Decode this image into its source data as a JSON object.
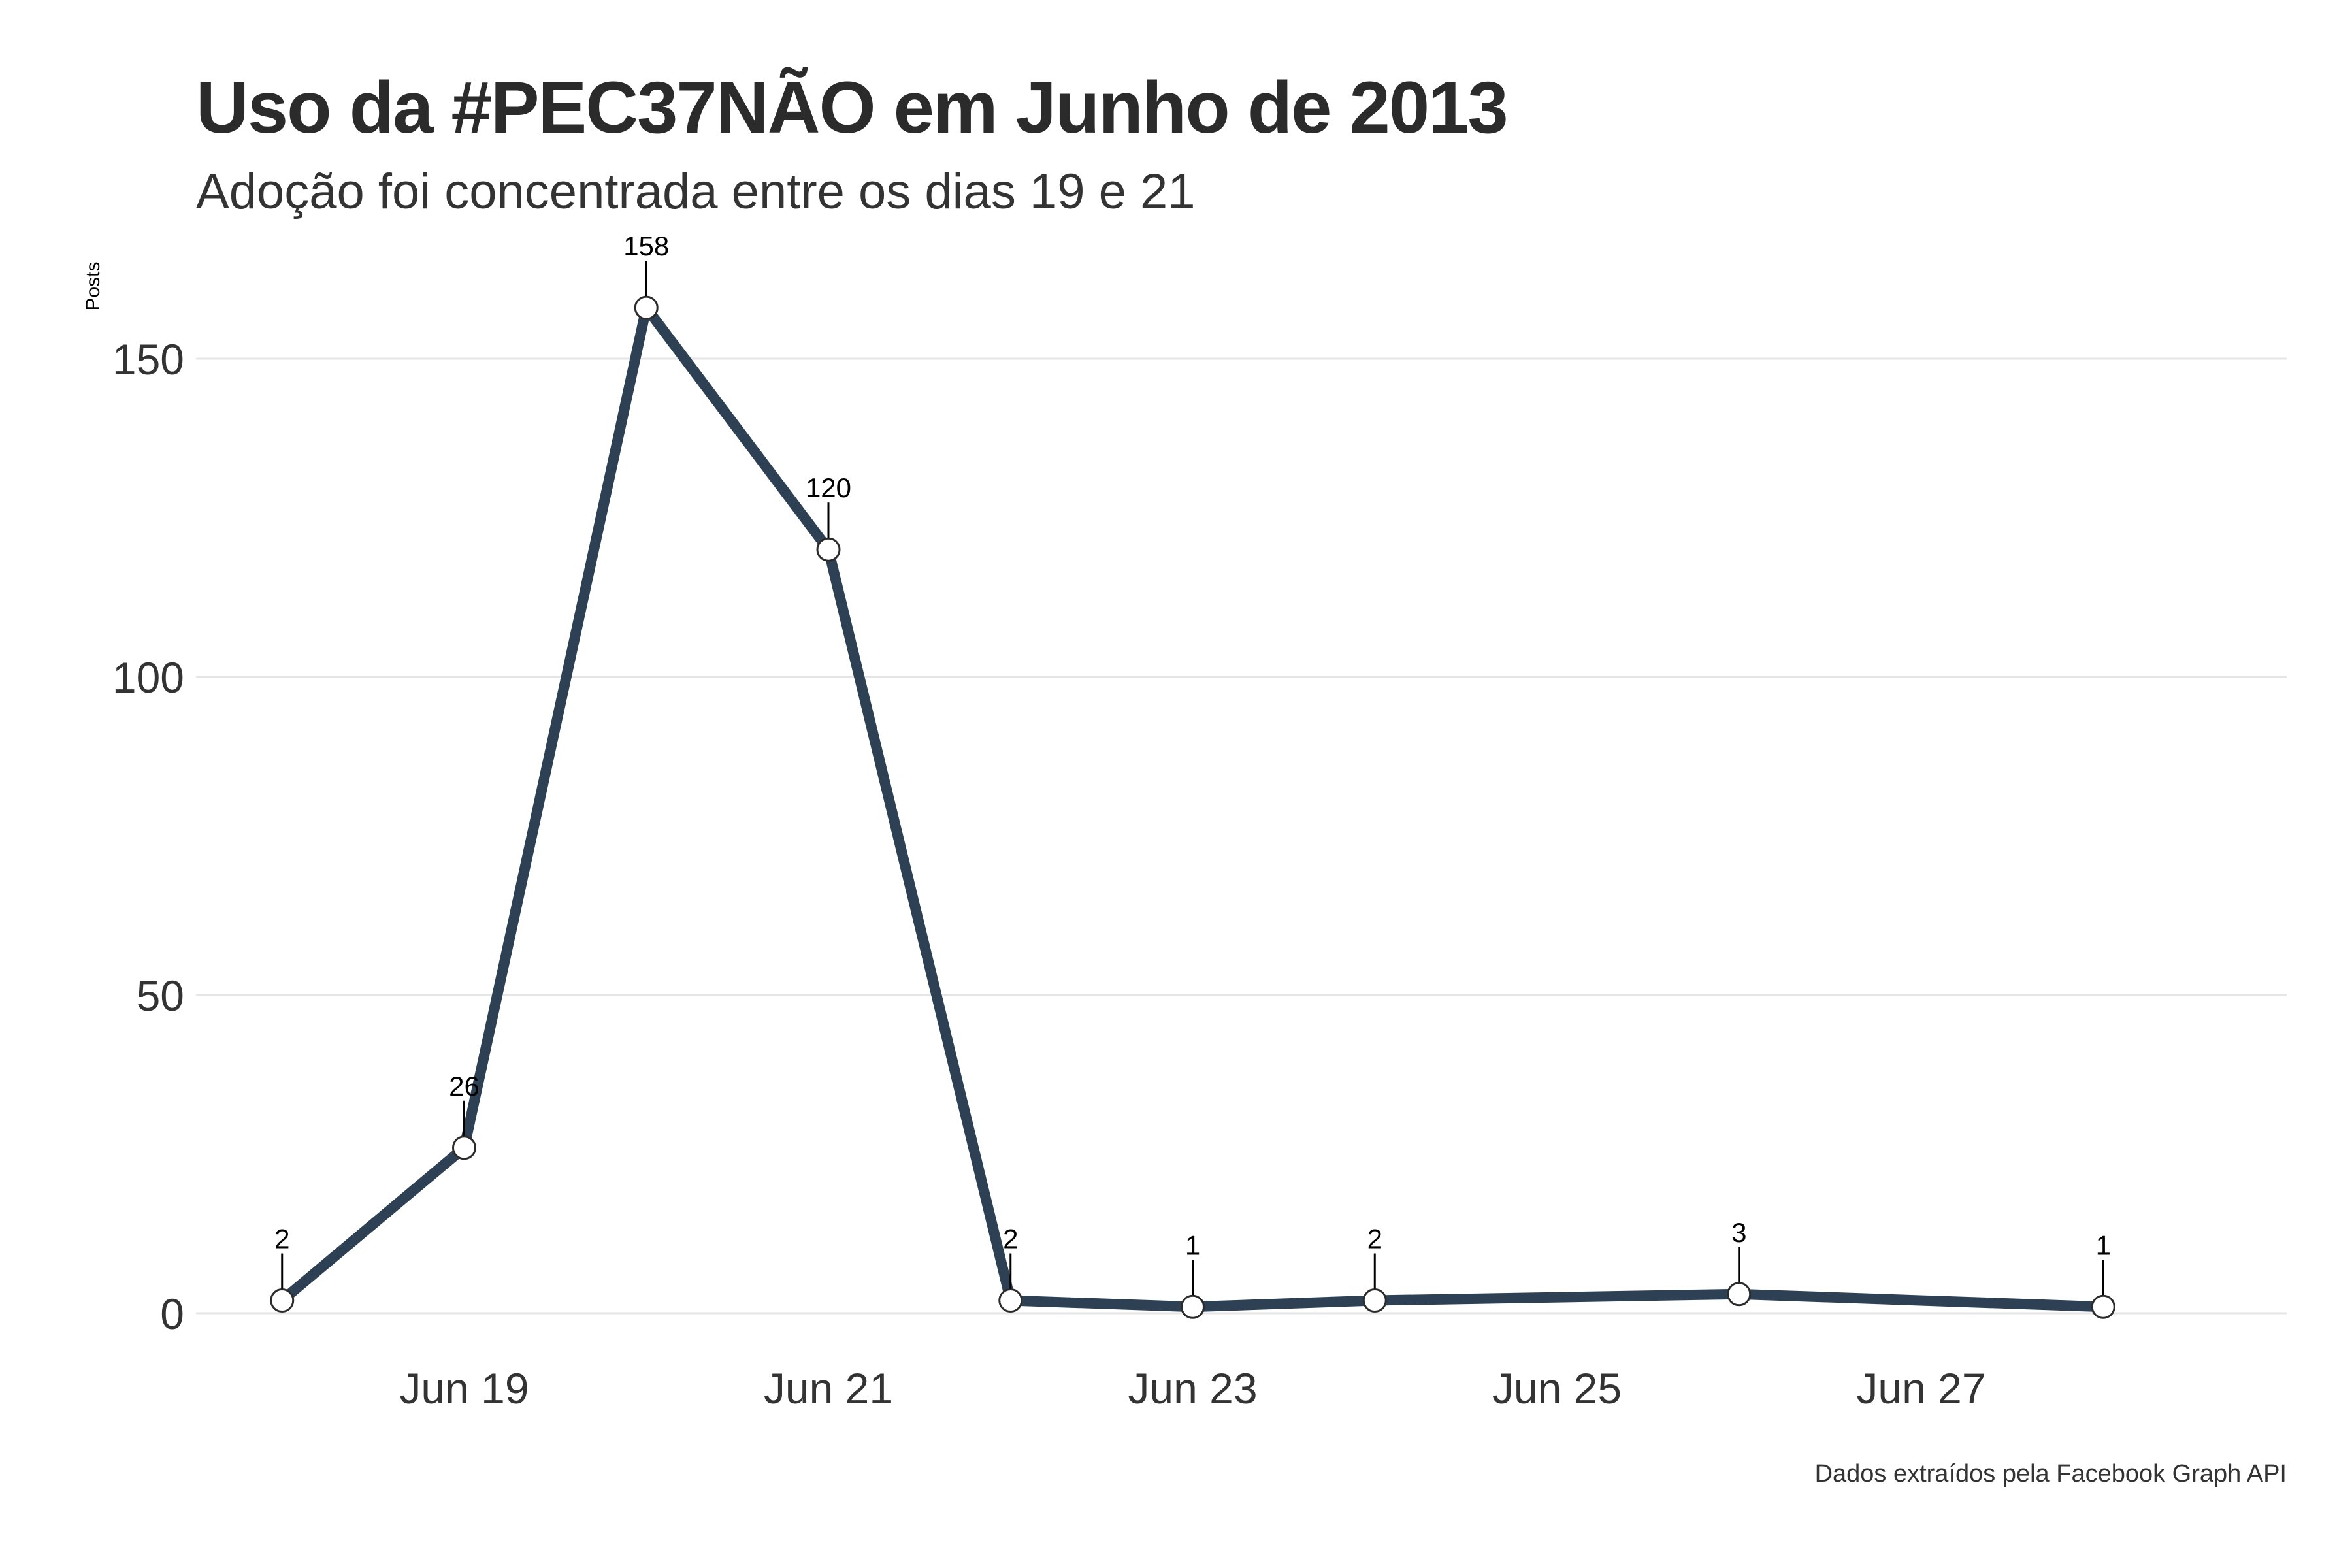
{
  "header": {
    "title": "Uso da #PEC37NÃO em Junho de 2013",
    "subtitle": "Adoção foi concentrada entre os dias 19 e 21"
  },
  "footer": {
    "caption": "Dados extraídos pela Facebook Graph API"
  },
  "chart_data": {
    "type": "line",
    "title": "Uso da #PEC37NÃO em Junho de 2013",
    "subtitle": "Adoção foi concentrada entre os dias 19 e 21",
    "xlabel": "",
    "ylabel": "Posts",
    "x": [
      "2013-06-18",
      "2013-06-19",
      "2013-06-20",
      "2013-06-21",
      "2013-06-22",
      "2013-06-23",
      "2013-06-24",
      "2013-06-26",
      "2013-06-28"
    ],
    "series": [
      {
        "values": [
          2,
          26,
          158,
          120,
          2,
          1,
          2,
          3,
          1
        ]
      }
    ],
    "data_labels": [
      "2",
      "26",
      "158",
      "120",
      "2",
      "1",
      "2",
      "3",
      "1"
    ],
    "x_ticks": [
      {
        "date": "2013-06-19",
        "label": "Jun 19"
      },
      {
        "date": "2013-06-21",
        "label": "Jun 21"
      },
      {
        "date": "2013-06-23",
        "label": "Jun 23"
      },
      {
        "date": "2013-06-25",
        "label": "Jun 25"
      },
      {
        "date": "2013-06-27",
        "label": "Jun 27"
      }
    ],
    "y_ticks": [
      0,
      50,
      100,
      150
    ],
    "xlim": [
      "2013-06-17",
      "2013-06-29"
    ],
    "ylim": [
      0,
      158
    ],
    "grid": "horizontal",
    "line_color": "#2e4154",
    "point_fill": "#ffffff"
  }
}
